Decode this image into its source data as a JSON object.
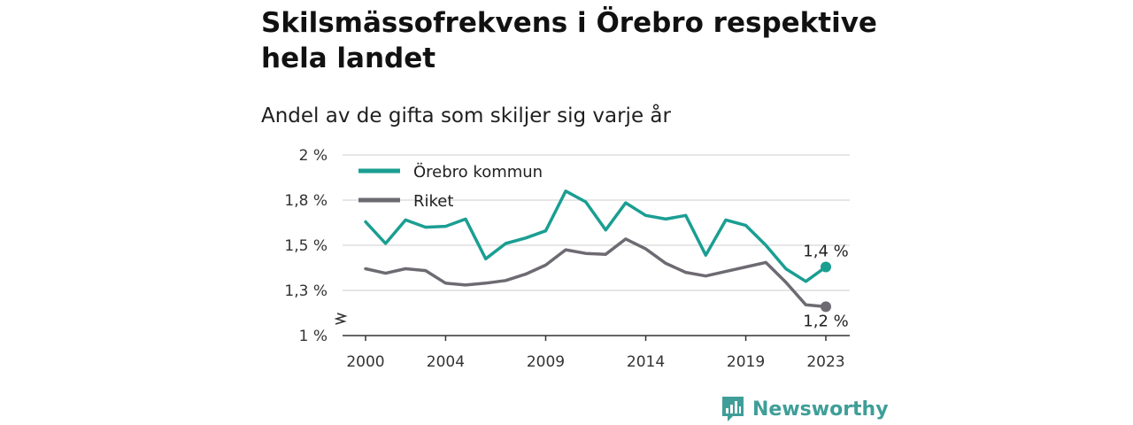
{
  "title": "Skilsmässofrekvens i Örebro respektive hela landet",
  "subtitle": "Andel av de gifta som skiljer sig varje år",
  "brand": {
    "name": "Newsworthy",
    "icon": "newsworthy-logo-icon",
    "color": "#3f9e98"
  },
  "chart_data": {
    "type": "line",
    "title": "Skilsmässofrekvens i Örebro respektive hela landet",
    "subtitle": "Andel av de gifta som skiljer sig varje år",
    "x": [
      2000,
      2001,
      2002,
      2003,
      2004,
      2005,
      2006,
      2007,
      2008,
      2009,
      2010,
      2011,
      2012,
      2013,
      2014,
      2015,
      2016,
      2017,
      2018,
      2019,
      2020,
      2021,
      2022,
      2023
    ],
    "x_ticks": [
      2000,
      2004,
      2009,
      2014,
      2019,
      2023
    ],
    "x_tick_labels": [
      "2000",
      "2004",
      "2009",
      "2014",
      "2019",
      "2023"
    ],
    "y_ticks": [
      1.0,
      1.25,
      1.5,
      1.75,
      2.0
    ],
    "y_tick_labels": [
      "1 %",
      "1,3 %",
      "1,5 %",
      "1,8 %",
      "2 %"
    ],
    "ylim": [
      1.0,
      2.0
    ],
    "y_axis_break": true,
    "grid": "horizontal",
    "legend_position": "top-left",
    "series": [
      {
        "name": "Örebro kommun",
        "color": "#1a9e92",
        "values": [
          1.63,
          1.51,
          1.64,
          1.6,
          1.605,
          1.645,
          1.425,
          1.51,
          1.54,
          1.58,
          1.8,
          1.74,
          1.585,
          1.735,
          1.665,
          1.645,
          1.665,
          1.445,
          1.64,
          1.61,
          1.5,
          1.37,
          1.3,
          1.38
        ],
        "end_label": "1,4 %"
      },
      {
        "name": "Riket",
        "color": "#6e6a72",
        "values": [
          1.37,
          1.345,
          1.37,
          1.36,
          1.29,
          1.28,
          1.29,
          1.305,
          1.34,
          1.39,
          1.475,
          1.455,
          1.45,
          1.535,
          1.48,
          1.4,
          1.35,
          1.33,
          1.355,
          1.38,
          1.405,
          1.295,
          1.17,
          1.16
        ],
        "end_label": "1,2 %"
      }
    ]
  }
}
